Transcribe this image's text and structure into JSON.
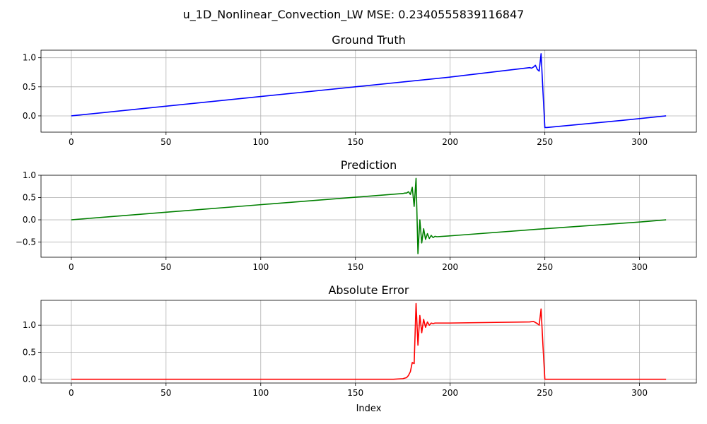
{
  "figure_title": "u_1D_Nonlinear_Convection_LW MSE: 0.2340555839116847",
  "chart_data": [
    {
      "type": "line",
      "title": "Ground Truth",
      "xlabel": "",
      "ylabel": "",
      "grid": true,
      "xlim": [
        -16,
        330
      ],
      "ylim": [
        -0.28,
        1.13
      ],
      "xticks": [
        0,
        50,
        100,
        150,
        200,
        250,
        300
      ],
      "xtick_labels": [
        "0",
        "50",
        "100",
        "150",
        "200",
        "250",
        "300"
      ],
      "yticks": [
        0.0,
        0.5,
        1.0
      ],
      "ytick_labels": [
        "0.0",
        "0.5",
        "1.0"
      ],
      "series": [
        {
          "color": "#0000ff",
          "x": [
            0,
            100,
            200,
            242,
            243,
            244,
            245,
            246,
            247,
            248,
            249,
            250,
            251,
            290,
            314
          ],
          "y": [
            0.0,
            0.333,
            0.667,
            0.83,
            0.82,
            0.84,
            0.87,
            0.8,
            0.77,
            1.07,
            0.42,
            -0.2,
            -0.2,
            -0.08,
            0.0
          ]
        }
      ]
    },
    {
      "type": "line",
      "title": "Prediction",
      "xlabel": "",
      "ylabel": "",
      "grid": true,
      "xlim": [
        -16,
        330
      ],
      "ylim": [
        -0.84,
        1.0
      ],
      "xticks": [
        0,
        50,
        100,
        150,
        200,
        250,
        300
      ],
      "xtick_labels": [
        "0",
        "50",
        "100",
        "150",
        "200",
        "250",
        "300"
      ],
      "yticks": [
        -0.5,
        0.0,
        0.5,
        1.0
      ],
      "ytick_labels": [
        "−0.5",
        "0.0",
        "0.5",
        "1.0"
      ],
      "series": [
        {
          "color": "#008000",
          "x": [
            0,
            100,
            175,
            176,
            177,
            178,
            179,
            180,
            181,
            182,
            183,
            184,
            185,
            186,
            187,
            188,
            189,
            190,
            191,
            192,
            193,
            200,
            250,
            300,
            314
          ],
          "y": [
            0.0,
            0.34,
            0.59,
            0.6,
            0.6,
            0.63,
            0.57,
            0.73,
            0.3,
            0.93,
            -0.76,
            0.0,
            -0.52,
            -0.2,
            -0.44,
            -0.31,
            -0.42,
            -0.35,
            -0.4,
            -0.37,
            -0.38,
            -0.36,
            -0.2,
            -0.05,
            0.0
          ]
        }
      ]
    },
    {
      "type": "line",
      "title": "Absolute Error",
      "xlabel": "Index",
      "ylabel": "",
      "grid": true,
      "xlim": [
        -16,
        330
      ],
      "ylim": [
        -0.07,
        1.46
      ],
      "xticks": [
        0,
        50,
        100,
        150,
        200,
        250,
        300
      ],
      "xtick_labels": [
        "0",
        "50",
        "100",
        "150",
        "200",
        "250",
        "300"
      ],
      "yticks": [
        0.0,
        0.5,
        1.0
      ],
      "ytick_labels": [
        "0.0",
        "0.5",
        "1.0"
      ],
      "series": [
        {
          "color": "#ff0000",
          "x": [
            0,
            170,
            175,
            177,
            178,
            179,
            180,
            181,
            182,
            183,
            184,
            185,
            186,
            187,
            188,
            189,
            190,
            191,
            192,
            193,
            200,
            242,
            244,
            246,
            247,
            248,
            249,
            250,
            251,
            314
          ],
          "y": [
            0.0,
            0.0,
            0.01,
            0.03,
            0.07,
            0.14,
            0.31,
            0.29,
            1.4,
            0.63,
            1.18,
            0.86,
            1.11,
            0.96,
            1.06,
            1.0,
            1.04,
            1.03,
            1.04,
            1.04,
            1.04,
            1.06,
            1.07,
            1.03,
            1.0,
            1.3,
            0.62,
            0.0,
            0.0,
            0.0
          ]
        }
      ]
    }
  ]
}
